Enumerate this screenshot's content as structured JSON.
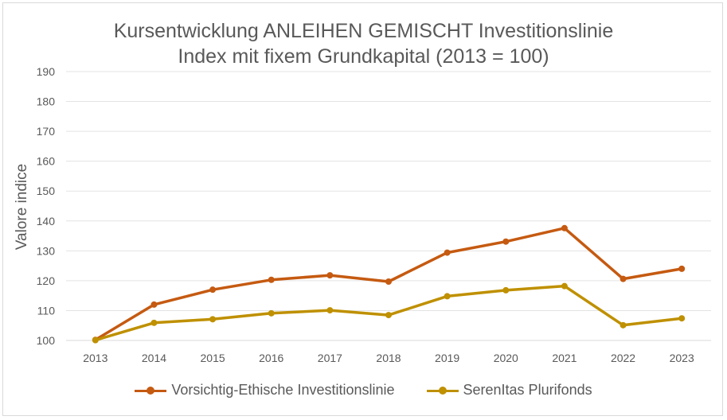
{
  "chart_data": {
    "type": "line",
    "title_line1": "Kursentwicklung ANLEIHEN GEMISCHT  Investitionslinie",
    "title_line2": "Index mit fixem Grundkapital (2013 = 100)",
    "xlabel": "",
    "ylabel": "Valore indice",
    "categories": [
      "2013",
      "2014",
      "2015",
      "2016",
      "2017",
      "2018",
      "2019",
      "2020",
      "2021",
      "2022",
      "2023"
    ],
    "ylim": [
      100,
      190
    ],
    "yticks": [
      100,
      110,
      120,
      130,
      140,
      150,
      160,
      170,
      180,
      190
    ],
    "grid": true,
    "legend_position": "bottom",
    "series": [
      {
        "name": "Vorsichtig-Ethische Investitionslinie",
        "color": "#C55A11",
        "values": [
          100.2,
          112.0,
          117.0,
          120.3,
          121.8,
          119.7,
          129.4,
          133.1,
          137.6,
          120.6,
          124.0
        ]
      },
      {
        "name": "SerenItas Plurifonds",
        "color": "#BF9000",
        "values": [
          100.1,
          105.9,
          107.1,
          109.1,
          110.1,
          108.5,
          114.8,
          116.8,
          118.2,
          105.1,
          107.4
        ]
      }
    ]
  }
}
